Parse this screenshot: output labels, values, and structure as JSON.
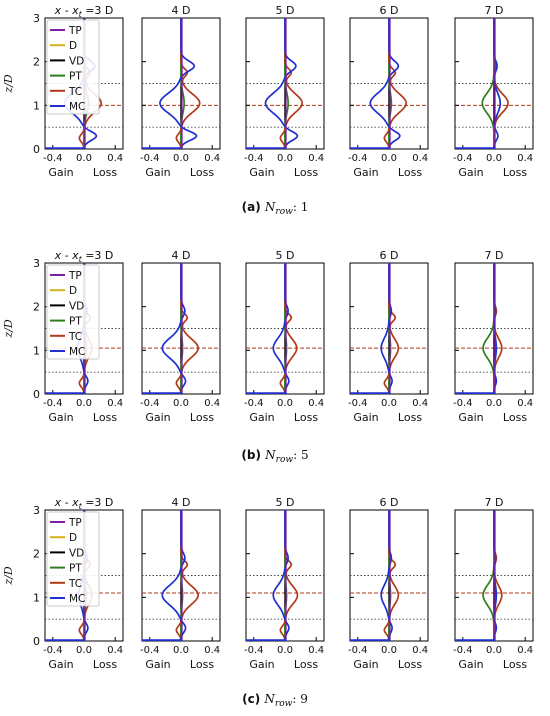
{
  "chart_data": {
    "type": "line",
    "xlim": [
      -0.5,
      0.5
    ],
    "ylim": [
      0,
      3
    ],
    "xticks": [
      -0.4,
      0.0,
      0.4
    ],
    "xtick_labels": [
      "-0.4",
      "0.0",
      "0.4"
    ],
    "yticks": [
      0,
      1,
      2,
      3
    ],
    "ylabel": "z/D",
    "bottom_labels": {
      "gain": "Gain",
      "loss": "Loss"
    },
    "first_column_prefix": "x - x",
    "first_column_sub": "t",
    "column_titles": [
      "=3 D",
      "4 D",
      "5 D",
      "6 D",
      "7 D"
    ],
    "legend": [
      {
        "key": "TP",
        "color": "#7b1fa2"
      },
      {
        "key": "D",
        "color": "#d4b21e"
      },
      {
        "key": "VD",
        "color": "#000000"
      },
      {
        "key": "PT",
        "color": "#2e7d1f"
      },
      {
        "key": "TC",
        "color": "#b03a1a"
      },
      {
        "key": "MC",
        "color": "#1f2fd0"
      }
    ],
    "reference_lines": {
      "dotted_lower": 0.5,
      "dotted_upper": 1.5,
      "hub_dashed": [
        1.0,
        1.05,
        1.1
      ]
    },
    "rows": [
      {
        "caption_letter": "(a)",
        "caption_var": "N",
        "caption_sub": "row",
        "caption_value": ": 1",
        "panels": [
          {
            "TP": 0.012,
            "PT": 0.06,
            "TC": 0.22,
            "MC": -0.25,
            "MCl": 0.16,
            "MCu": 0.14
          },
          {
            "TP": 0.012,
            "PT": 0.04,
            "TC": 0.24,
            "MC": -0.27,
            "MCl": 0.2,
            "MCu": 0.17
          },
          {
            "TP": 0.012,
            "PT": 0.04,
            "TC": 0.22,
            "MC": -0.25,
            "MCl": 0.16,
            "MCu": 0.14
          },
          {
            "TP": 0.012,
            "PT": 0.03,
            "TC": 0.22,
            "MC": -0.24,
            "MCl": 0.14,
            "MCu": 0.12
          },
          {
            "TP": 0.012,
            "PT": -0.15,
            "TC": 0.18,
            "MC": 0.08,
            "MCl": 0.05,
            "MCu": 0.04
          }
        ]
      },
      {
        "caption_letter": "(b)",
        "caption_var": "N",
        "caption_sub": "row",
        "caption_value": ": 5",
        "panels": [
          {
            "TP": 0.012,
            "PT": 0.03,
            "TC": 0.1,
            "MC": -0.08,
            "MCl": 0.05,
            "MCu": 0.04
          },
          {
            "TP": 0.012,
            "PT": 0.02,
            "TC": 0.22,
            "MC": -0.24,
            "MCl": 0.06,
            "MCu": 0.05
          },
          {
            "TP": 0.012,
            "PT": 0.02,
            "TC": 0.15,
            "MC": -0.15,
            "MCl": 0.05,
            "MCu": 0.04
          },
          {
            "TP": 0.012,
            "PT": 0.02,
            "TC": 0.12,
            "MC": -0.1,
            "MCl": 0.04,
            "MCu": 0.03
          },
          {
            "TP": 0.012,
            "PT": -0.14,
            "TC": 0.1,
            "MC": 0.03,
            "MCl": 0.03,
            "MCu": 0.02
          }
        ]
      },
      {
        "caption_letter": "(c)",
        "caption_var": "N",
        "caption_sub": "row",
        "caption_value": ": 9",
        "panels": [
          {
            "TP": 0.012,
            "PT": 0.03,
            "TC": 0.1,
            "MC": -0.07,
            "MCl": 0.05,
            "MCu": 0.04
          },
          {
            "TP": 0.012,
            "PT": 0.02,
            "TC": 0.22,
            "MC": -0.24,
            "MCl": 0.06,
            "MCu": 0.05
          },
          {
            "TP": 0.012,
            "PT": 0.02,
            "TC": 0.16,
            "MC": -0.15,
            "MCl": 0.05,
            "MCu": 0.04
          },
          {
            "TP": 0.012,
            "PT": 0.02,
            "TC": 0.12,
            "MC": -0.1,
            "MCl": 0.04,
            "MCu": 0.03
          },
          {
            "TP": 0.012,
            "PT": -0.14,
            "TC": 0.1,
            "MC": 0.03,
            "MCl": 0.03,
            "MCu": 0.02
          }
        ]
      }
    ]
  }
}
